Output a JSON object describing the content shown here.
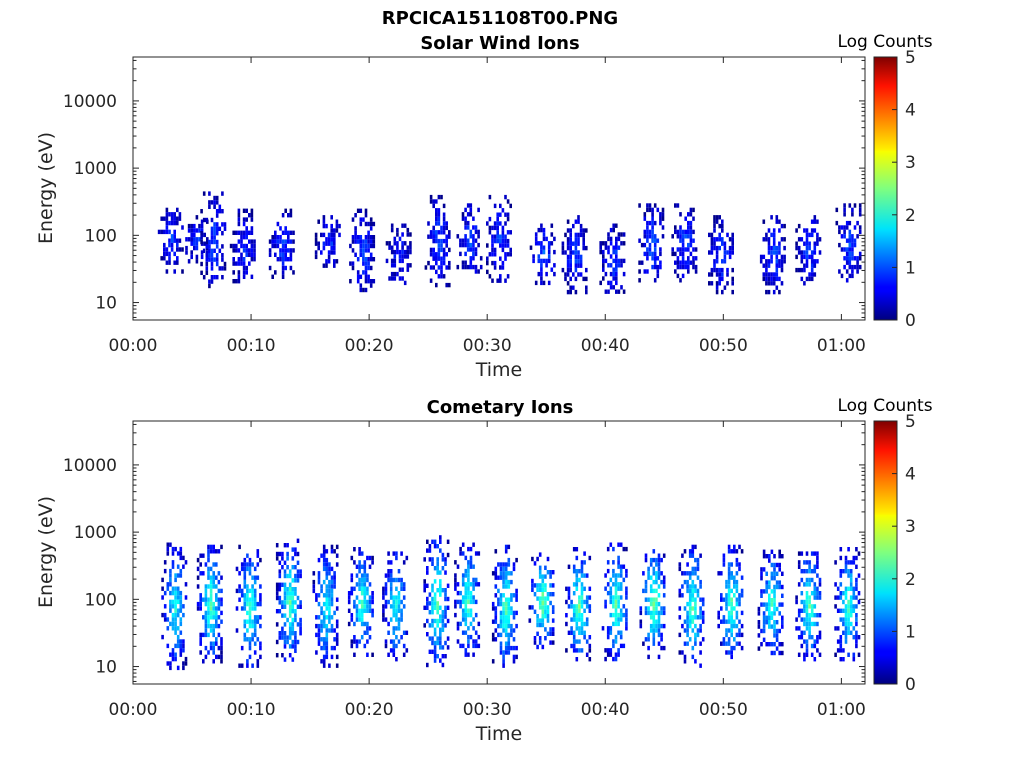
{
  "figure": {
    "title": "RPCICA151108T00.PNG"
  },
  "chart_data": [
    {
      "type": "heatmap",
      "title": "Solar Wind Ions",
      "xlabel": "Time",
      "ylabel": "Energy (eV)",
      "x_ticks": [
        "00:00",
        "00:10",
        "00:20",
        "00:30",
        "00:40",
        "00:50",
        "01:00"
      ],
      "xlim_minutes": [
        0,
        62
      ],
      "y_ticks": [
        10,
        100,
        1000,
        10000
      ],
      "ylim": [
        5.5,
        45000
      ],
      "y_scale": "log",
      "colorbar": {
        "label": "Log Counts",
        "ticks": [
          0,
          1,
          2,
          3,
          4,
          5
        ],
        "range": [
          0,
          5
        ],
        "colormap": "jet"
      },
      "bursts": [
        {
          "t": 3.2,
          "e_lo": 30,
          "e_hi": 300,
          "peak": 0.9
        },
        {
          "t": 5.3,
          "e_lo": 40,
          "e_hi": 200,
          "peak": 0.9
        },
        {
          "t": 6.8,
          "e_lo": 18,
          "e_hi": 450,
          "peak": 1.0
        },
        {
          "t": 9.3,
          "e_lo": 20,
          "e_hi": 250,
          "peak": 0.9
        },
        {
          "t": 12.6,
          "e_lo": 25,
          "e_hi": 250,
          "peak": 1.0
        },
        {
          "t": 16.5,
          "e_lo": 35,
          "e_hi": 200,
          "peak": 0.9
        },
        {
          "t": 19.4,
          "e_lo": 15,
          "e_hi": 250,
          "peak": 1.0
        },
        {
          "t": 22.5,
          "e_lo": 20,
          "e_hi": 150,
          "peak": 0.8
        },
        {
          "t": 25.8,
          "e_lo": 18,
          "e_hi": 400,
          "peak": 1.0
        },
        {
          "t": 28.5,
          "e_lo": 25,
          "e_hi": 300,
          "peak": 1.0
        },
        {
          "t": 31.0,
          "e_lo": 20,
          "e_hi": 400,
          "peak": 0.9
        },
        {
          "t": 34.7,
          "e_lo": 20,
          "e_hi": 150,
          "peak": 1.1
        },
        {
          "t": 37.4,
          "e_lo": 15,
          "e_hi": 200,
          "peak": 1.0
        },
        {
          "t": 40.6,
          "e_lo": 15,
          "e_hi": 150,
          "peak": 1.0
        },
        {
          "t": 43.9,
          "e_lo": 20,
          "e_hi": 300,
          "peak": 1.1
        },
        {
          "t": 46.7,
          "e_lo": 20,
          "e_hi": 300,
          "peak": 1.0
        },
        {
          "t": 49.8,
          "e_lo": 15,
          "e_hi": 200,
          "peak": 1.0
        },
        {
          "t": 54.2,
          "e_lo": 15,
          "e_hi": 200,
          "peak": 1.0
        },
        {
          "t": 57.2,
          "e_lo": 20,
          "e_hi": 200,
          "peak": 1.0
        },
        {
          "t": 60.6,
          "e_lo": 20,
          "e_hi": 300,
          "peak": 1.0
        }
      ]
    },
    {
      "type": "heatmap",
      "title": "Cometary Ions",
      "xlabel": "Time",
      "ylabel": "Energy (eV)",
      "x_ticks": [
        "00:00",
        "00:10",
        "00:20",
        "00:30",
        "00:40",
        "00:50",
        "01:00"
      ],
      "xlim_minutes": [
        0,
        62
      ],
      "y_ticks": [
        10,
        100,
        1000,
        10000
      ],
      "ylim": [
        5.5,
        45000
      ],
      "y_scale": "log",
      "colorbar": {
        "label": "Log Counts",
        "ticks": [
          0,
          1,
          2,
          3,
          4,
          5
        ],
        "range": [
          0,
          5
        ],
        "colormap": "jet"
      },
      "bursts": [
        {
          "t": 3.5,
          "e_lo": 10,
          "e_hi": 700,
          "peak": 2.0
        },
        {
          "t": 6.5,
          "e_lo": 12,
          "e_hi": 650,
          "peak": 2.3
        },
        {
          "t": 9.8,
          "e_lo": 10,
          "e_hi": 650,
          "peak": 2.2
        },
        {
          "t": 13.2,
          "e_lo": 12,
          "e_hi": 800,
          "peak": 2.3
        },
        {
          "t": 16.3,
          "e_lo": 10,
          "e_hi": 650,
          "peak": 2.0
        },
        {
          "t": 19.3,
          "e_lo": 15,
          "e_hi": 600,
          "peak": 2.2
        },
        {
          "t": 22.2,
          "e_lo": 12,
          "e_hi": 600,
          "peak": 2.0
        },
        {
          "t": 25.7,
          "e_lo": 10,
          "e_hi": 900,
          "peak": 2.3
        },
        {
          "t": 28.3,
          "e_lo": 15,
          "e_hi": 700,
          "peak": 2.2
        },
        {
          "t": 31.5,
          "e_lo": 10,
          "e_hi": 650,
          "peak": 2.3
        },
        {
          "t": 34.6,
          "e_lo": 20,
          "e_hi": 500,
          "peak": 2.5
        },
        {
          "t": 37.7,
          "e_lo": 12,
          "e_hi": 600,
          "peak": 2.4
        },
        {
          "t": 40.8,
          "e_lo": 12,
          "e_hi": 700,
          "peak": 2.3
        },
        {
          "t": 44.0,
          "e_lo": 15,
          "e_hi": 650,
          "peak": 2.5
        },
        {
          "t": 47.3,
          "e_lo": 10,
          "e_hi": 650,
          "peak": 2.3
        },
        {
          "t": 50.6,
          "e_lo": 12,
          "e_hi": 650,
          "peak": 2.3
        },
        {
          "t": 54.0,
          "e_lo": 15,
          "e_hi": 550,
          "peak": 2.2
        },
        {
          "t": 57.2,
          "e_lo": 12,
          "e_hi": 600,
          "peak": 2.3
        },
        {
          "t": 60.5,
          "e_lo": 12,
          "e_hi": 600,
          "peak": 2.2
        }
      ]
    }
  ]
}
